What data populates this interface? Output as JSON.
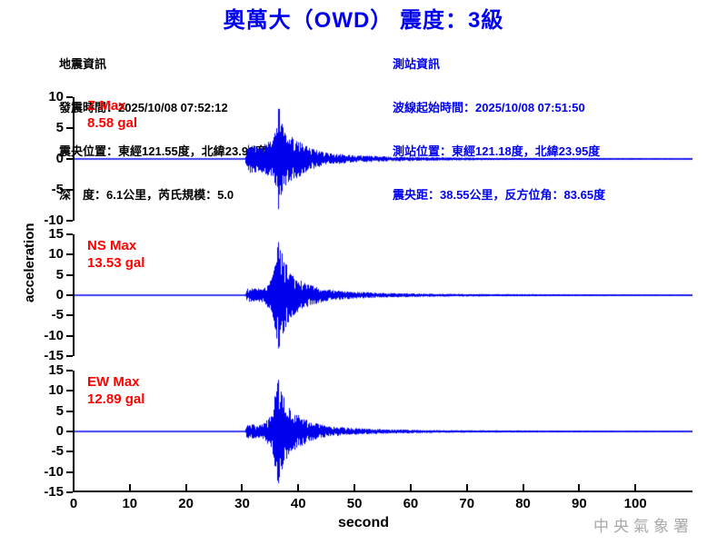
{
  "title": "奧萬大（OWD） 震度：3級",
  "colors": {
    "accent_blue": "#0000EE",
    "trace_blue": "#0000EE",
    "label_red": "#FF0000",
    "axis_black": "#000000",
    "watermark_gray": "#A9A9A9"
  },
  "quake_info": {
    "lines": [
      "地震資訊",
      "發震時間：2025/10/08 07:52:12",
      "震央位置：東經121.55度，北緯23.99度",
      "深　度：6.1公里，芮氏規模：5.0"
    ]
  },
  "station_info": {
    "lines": [
      "測站資訊",
      "波線起始時間：2025/10/08 07:51:50",
      "測站位置：東經121.18度，北緯23.95度",
      "震央距：38.55公里，反方位角：83.65度"
    ]
  },
  "watermark": "中央氣象署",
  "chart_data": {
    "type": "line",
    "title": "奧萬大（OWD） 震度：3級",
    "xlabel": "second",
    "ylabel": "acceleration",
    "xlim": [
      0,
      110
    ],
    "x_ticks": [
      0,
      10,
      20,
      30,
      40,
      50,
      60,
      70,
      80,
      90,
      100
    ],
    "grid": false,
    "legend": "none",
    "series": [
      {
        "name": "Z",
        "label": "Z Max",
        "max_label": "8.58 gal",
        "max_gal": 8.58,
        "units": "gal",
        "ylim": [
          -10,
          10
        ],
        "y_ticks": [
          10,
          5,
          0,
          -5,
          -10
        ],
        "onset_s": 30.5,
        "peak_s": 36.3,
        "envelope": [
          [
            30.3,
            0
          ],
          [
            30.6,
            0.27
          ],
          [
            33,
            0.24
          ],
          [
            35,
            0.35
          ],
          [
            36.0,
            0.75
          ],
          [
            36.3,
            1.0
          ],
          [
            37,
            0.6
          ],
          [
            38,
            0.45
          ],
          [
            40,
            0.33
          ],
          [
            42,
            0.2
          ],
          [
            45,
            0.11
          ],
          [
            50,
            0.07
          ],
          [
            56,
            0.045
          ],
          [
            65,
            0.03
          ],
          [
            75,
            0.02
          ],
          [
            110,
            0.012
          ]
        ]
      },
      {
        "name": "NS",
        "label": "NS Max",
        "max_label": "13.53 gal",
        "max_gal": 13.53,
        "units": "gal",
        "ylim": [
          -15,
          15
        ],
        "y_ticks": [
          15,
          10,
          5,
          0,
          -5,
          -10,
          -15
        ],
        "onset_s": 30.5,
        "peak_s": 36.3,
        "envelope": [
          [
            30.3,
            0
          ],
          [
            30.6,
            0.12
          ],
          [
            33.5,
            0.13
          ],
          [
            35,
            0.3
          ],
          [
            35.8,
            0.75
          ],
          [
            36.3,
            1.0
          ],
          [
            37.5,
            0.6
          ],
          [
            38.5,
            0.4
          ],
          [
            40,
            0.28
          ],
          [
            42,
            0.18
          ],
          [
            45,
            0.1
          ],
          [
            50,
            0.06
          ],
          [
            56,
            0.04
          ],
          [
            65,
            0.025
          ],
          [
            110,
            0.01
          ]
        ]
      },
      {
        "name": "EW",
        "label": "EW Max",
        "max_label": "12.89 gal",
        "max_gal": 12.89,
        "units": "gal",
        "ylim": [
          -15,
          15
        ],
        "y_ticks": [
          15,
          10,
          5,
          0,
          -5,
          -10,
          -15
        ],
        "onset_s": 30.5,
        "peak_s": 36.2,
        "envelope": [
          [
            30.3,
            0
          ],
          [
            30.6,
            0.13
          ],
          [
            33.5,
            0.14
          ],
          [
            35,
            0.32
          ],
          [
            35.8,
            0.8
          ],
          [
            36.2,
            1.0
          ],
          [
            37.5,
            0.55
          ],
          [
            38.5,
            0.4
          ],
          [
            40,
            0.3
          ],
          [
            42,
            0.18
          ],
          [
            45,
            0.1
          ],
          [
            50,
            0.06
          ],
          [
            56,
            0.04
          ],
          [
            65,
            0.025
          ],
          [
            110,
            0.01
          ]
        ]
      }
    ]
  }
}
